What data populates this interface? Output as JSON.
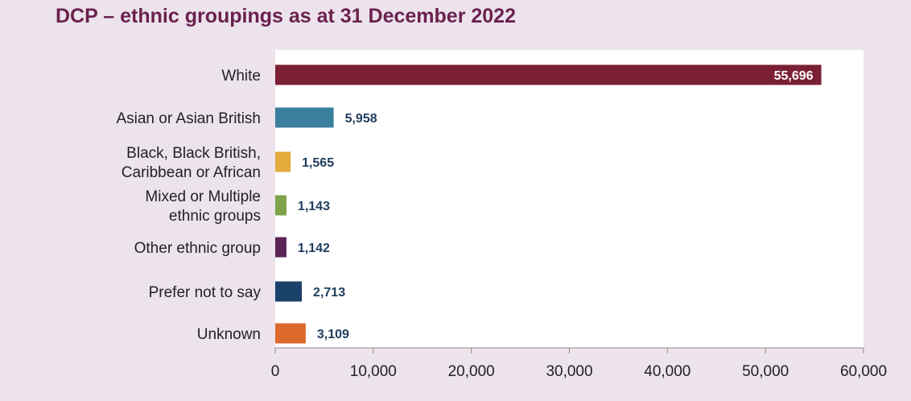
{
  "chart_data": {
    "type": "bar",
    "orientation": "horizontal",
    "title": "DCP – ethnic groupings as at 31 December 2022",
    "categories": [
      [
        "White"
      ],
      [
        "Asian or Asian British"
      ],
      [
        "Black, Black British,",
        "Caribbean or African"
      ],
      [
        "Mixed or Multiple",
        "ethnic groups"
      ],
      [
        "Other ethnic group"
      ],
      [
        "Prefer not to say"
      ],
      [
        "Unknown"
      ]
    ],
    "values": [
      55696,
      5958,
      1565,
      1143,
      1142,
      2713,
      3109
    ],
    "value_labels": [
      "55,696",
      "5,958",
      "1,565",
      "1,143",
      "1,142",
      "2,713",
      "3,109"
    ],
    "colors": [
      "#7b1f35",
      "#3a7f9e",
      "#e2ab3c",
      "#7da24a",
      "#5a2555",
      "#1b426b",
      "#db6a2c"
    ],
    "xlim": [
      0,
      60000
    ],
    "x_ticks": [
      0,
      10000,
      20000,
      30000,
      40000,
      50000,
      60000
    ],
    "x_tick_labels": [
      "0",
      "10,000",
      "20,000",
      "30,000",
      "40,000",
      "50,000",
      "60,000"
    ],
    "xlabel": "",
    "ylabel": "",
    "grid": false,
    "legend": "none"
  }
}
